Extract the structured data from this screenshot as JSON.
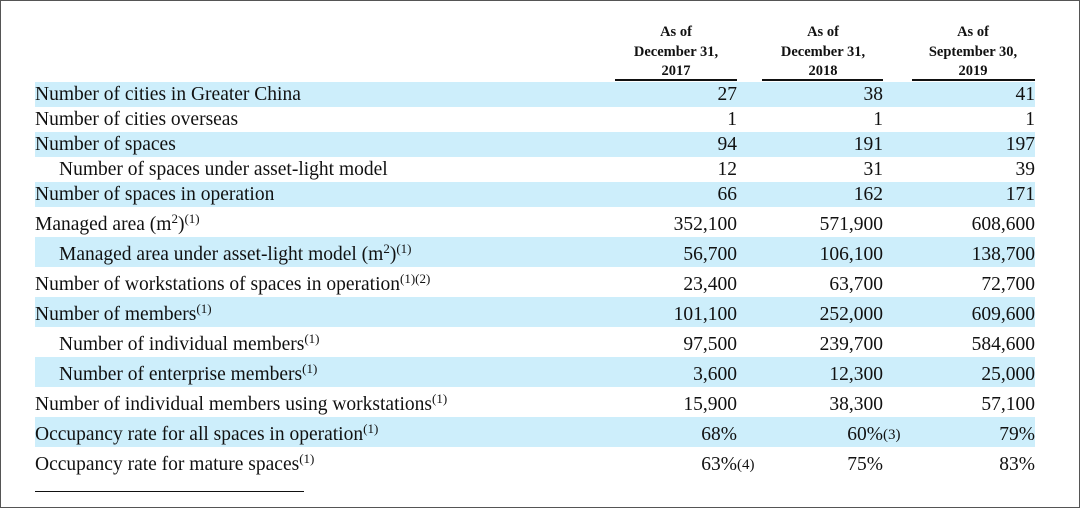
{
  "table": {
    "columns": [
      [
        "As of",
        "December 31,",
        "2017"
      ],
      [
        "As of",
        "December 31,",
        "2018"
      ],
      [
        "As of",
        "September 30,",
        "2019"
      ]
    ],
    "rows": [
      {
        "label": [
          {
            "text": "Number of cities in Greater China"
          }
        ],
        "indent": false,
        "shaded": true,
        "cells": [
          {
            "text": "27"
          },
          {
            "text": "38"
          },
          {
            "text": "41"
          }
        ]
      },
      {
        "label": [
          {
            "text": "Number of cities overseas"
          }
        ],
        "indent": false,
        "shaded": false,
        "cells": [
          {
            "text": "1"
          },
          {
            "text": "1"
          },
          {
            "text": "1"
          }
        ]
      },
      {
        "label": [
          {
            "text": "Number of spaces"
          }
        ],
        "indent": false,
        "shaded": true,
        "cells": [
          {
            "text": "94"
          },
          {
            "text": "191"
          },
          {
            "text": "197"
          }
        ]
      },
      {
        "label": [
          {
            "text": "Number of spaces under asset-light model"
          }
        ],
        "indent": true,
        "shaded": false,
        "cells": [
          {
            "text": "12"
          },
          {
            "text": "31"
          },
          {
            "text": "39"
          }
        ]
      },
      {
        "label": [
          {
            "text": "Number of spaces in operation"
          }
        ],
        "indent": false,
        "shaded": true,
        "cells": [
          {
            "text": "66"
          },
          {
            "text": "162"
          },
          {
            "text": "171"
          }
        ]
      },
      {
        "label": [
          {
            "text": "Managed area (m"
          },
          {
            "text": "2",
            "sup": true
          },
          {
            "text": ")"
          },
          {
            "text": "(1)",
            "sup": true
          }
        ],
        "indent": false,
        "shaded": false,
        "tall": true,
        "cells": [
          {
            "text": "352,100"
          },
          {
            "text": "571,900"
          },
          {
            "text": "608,600"
          }
        ]
      },
      {
        "label": [
          {
            "text": "Managed area under asset-light model (m"
          },
          {
            "text": "2",
            "sup": true
          },
          {
            "text": ")"
          },
          {
            "text": "(1)",
            "sup": true
          }
        ],
        "indent": true,
        "shaded": true,
        "tall": true,
        "cells": [
          {
            "text": "56,700"
          },
          {
            "text": "106,100"
          },
          {
            "text": "138,700"
          }
        ]
      },
      {
        "label": [
          {
            "text": "Number of workstations of spaces in operation"
          },
          {
            "text": "(1)(2)",
            "sup": true
          }
        ],
        "indent": false,
        "shaded": false,
        "tall": true,
        "cells": [
          {
            "text": "23,400"
          },
          {
            "text": "63,700"
          },
          {
            "text": "72,700"
          }
        ]
      },
      {
        "label": [
          {
            "text": "Number of members"
          },
          {
            "text": "(1)",
            "sup": true
          }
        ],
        "indent": false,
        "shaded": true,
        "tall": true,
        "cells": [
          {
            "text": "101,100"
          },
          {
            "text": "252,000"
          },
          {
            "text": "609,600"
          }
        ]
      },
      {
        "label": [
          {
            "text": "Number of individual members"
          },
          {
            "text": "(1)",
            "sup": true
          }
        ],
        "indent": true,
        "shaded": false,
        "tall": true,
        "cells": [
          {
            "text": "97,500"
          },
          {
            "text": "239,700"
          },
          {
            "text": "584,600"
          }
        ]
      },
      {
        "label": [
          {
            "text": "Number of enterprise members"
          },
          {
            "text": "(1)",
            "sup": true
          }
        ],
        "indent": true,
        "shaded": true,
        "tall": true,
        "cells": [
          {
            "text": "3,600"
          },
          {
            "text": "12,300"
          },
          {
            "text": "25,000"
          }
        ]
      },
      {
        "label": [
          {
            "text": "Number of individual members using workstations"
          },
          {
            "text": "(1)",
            "sup": true
          }
        ],
        "indent": false,
        "shaded": false,
        "tall": true,
        "cells": [
          {
            "text": "15,900"
          },
          {
            "text": "38,300"
          },
          {
            "text": "57,100"
          }
        ]
      },
      {
        "label": [
          {
            "text": "Occupancy rate for all spaces in operation"
          },
          {
            "text": "(1)",
            "sup": true
          }
        ],
        "indent": false,
        "shaded": true,
        "tall": true,
        "cells": [
          {
            "text": "68%"
          },
          {
            "text": "60%",
            "note": "(3)"
          },
          {
            "text": "79%"
          }
        ]
      },
      {
        "label": [
          {
            "text": "Occupancy rate for mature spaces"
          },
          {
            "text": "(1)",
            "sup": true
          }
        ],
        "indent": false,
        "shaded": false,
        "tall": true,
        "cells": [
          {
            "text": "63%",
            "note": "(4)"
          },
          {
            "text": "75%"
          },
          {
            "text": "83%"
          }
        ]
      }
    ]
  }
}
